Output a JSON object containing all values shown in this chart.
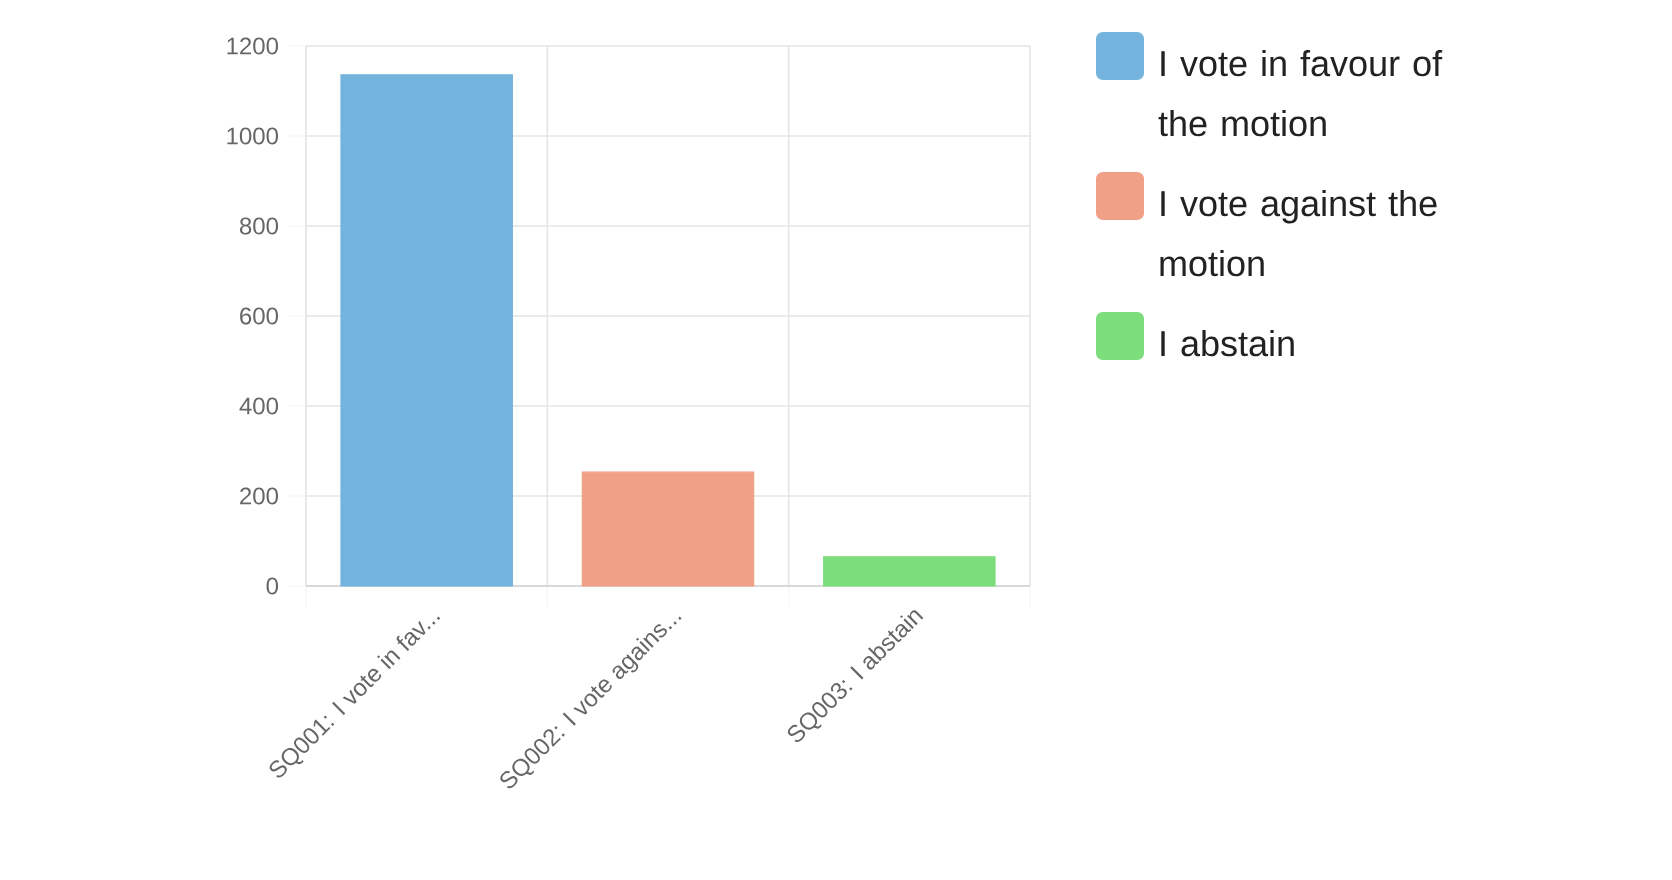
{
  "chart_data": {
    "type": "bar",
    "categories": [
      "SQ001: I vote in fav...",
      "SQ002: I vote agains...",
      "SQ003: I abstain"
    ],
    "series": [
      {
        "name": "I vote in favour of the motion",
        "color": "#73b3dd",
        "values": [
          1136,
          null,
          null
        ]
      },
      {
        "name": "I vote against the motion",
        "color": "#f0a086",
        "values": [
          null,
          253,
          null
        ]
      },
      {
        "name": "I abstain",
        "color": "#7bde7b",
        "values": [
          null,
          null,
          65
        ]
      }
    ],
    "ylim": [
      0,
      1200
    ],
    "yticks": [
      0,
      200,
      400,
      600,
      800,
      1000,
      1200
    ],
    "grid": true,
    "legend": "top right"
  }
}
